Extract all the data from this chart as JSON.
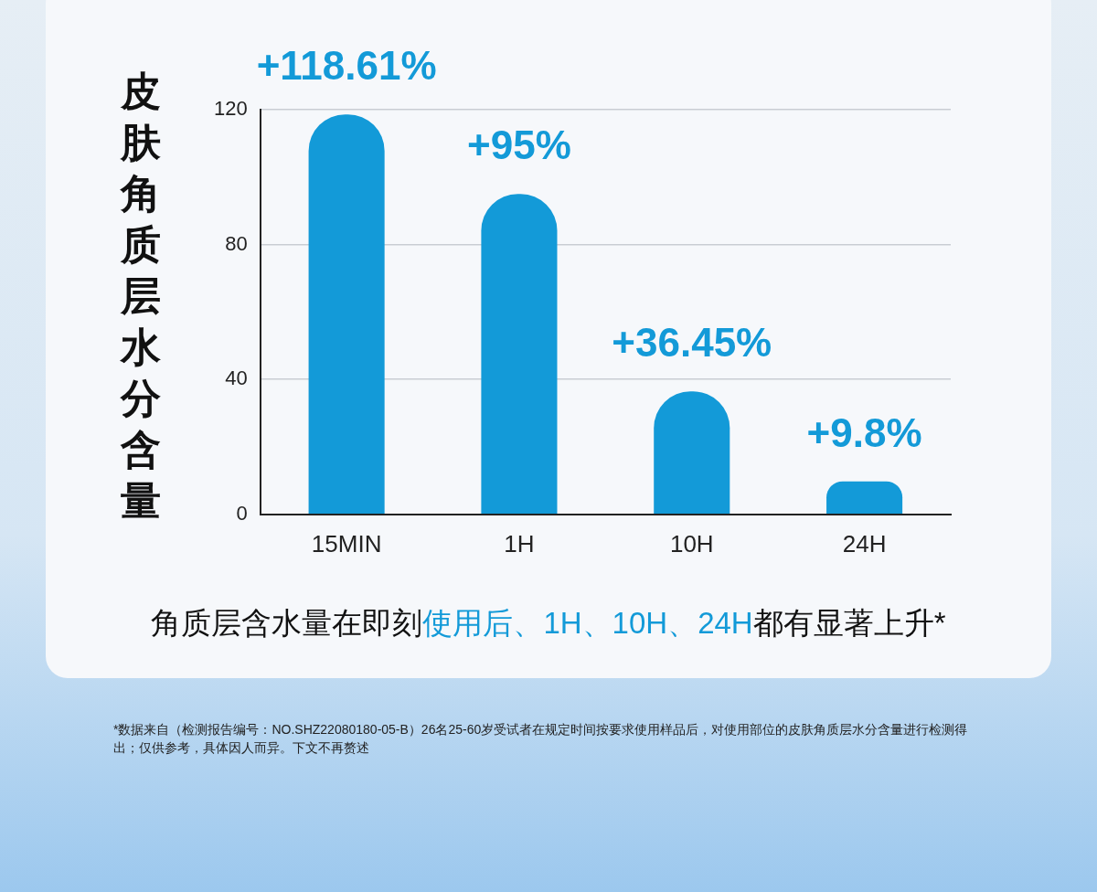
{
  "chart_data": {
    "type": "bar",
    "ylabel": "皮肤角质层水分含量",
    "categories": [
      "15MIN",
      "1H",
      "10H",
      "24H"
    ],
    "values": [
      118.61,
      95,
      36.45,
      9.8
    ],
    "value_labels": [
      "+118.61%",
      "+95%",
      "+36.45%",
      "+9.8%"
    ],
    "color": "#139ad8",
    "ylim": [
      0,
      120
    ],
    "yticks": [
      0,
      40,
      80,
      120
    ],
    "grid": "y",
    "legend": false,
    "annotations": [
      "角质层含水量在即刻",
      "使用后、1H、10H、24H",
      "都有显著上升*",
      "*数据来自（检测报告编号：NO.SHZ22080180-05-B）26名25-60岁受试者在规定时间按要求使用样品后，对使用部位的皮肤角质层水分含量进行检测得出；仅供参考，具体因人而异。下文不再赘述"
    ]
  }
}
